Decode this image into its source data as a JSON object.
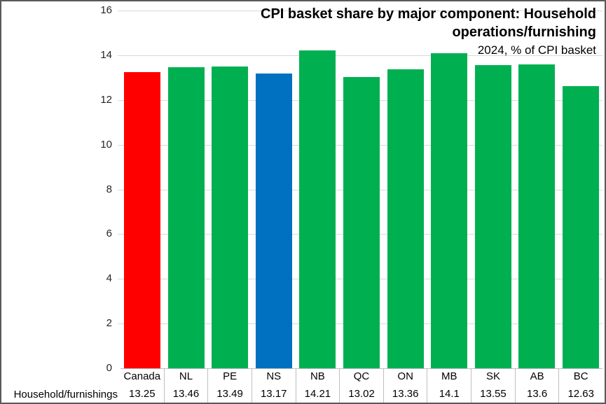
{
  "chart_data": {
    "type": "bar",
    "title": "CPI basket share by major component: Household operations/furnishing",
    "title_lines": [
      "CPI basket share by major component: Household",
      "operations/furnishing"
    ],
    "subtitle": "2024, % of CPI basket",
    "categories": [
      "Canada",
      "NL",
      "PE",
      "NS",
      "NB",
      "QC",
      "ON",
      "MB",
      "SK",
      "AB",
      "BC"
    ],
    "series": [
      {
        "name": "Household/furnishings",
        "values": [
          13.25,
          13.46,
          13.49,
          13.17,
          14.21,
          13.02,
          13.36,
          14.1,
          13.55,
          13.6,
          12.63
        ]
      }
    ],
    "bar_colors": [
      "#FF0000",
      "#00B050",
      "#00B050",
      "#0070C0",
      "#00B050",
      "#00B050",
      "#00B050",
      "#00B050",
      "#00B050",
      "#00B050",
      "#00B050"
    ],
    "ylim": [
      0,
      16
    ],
    "yticks": [
      0,
      2,
      4,
      6,
      8,
      10,
      12,
      14,
      16
    ],
    "grid": true,
    "legend_position": "none",
    "colors": {
      "highlight_red": "#FF0000",
      "default_green": "#00B050",
      "highlight_blue": "#0070C0",
      "gridline": "#D9D9D9",
      "axis_line": "#BFBFBF",
      "border": "#595959"
    }
  }
}
